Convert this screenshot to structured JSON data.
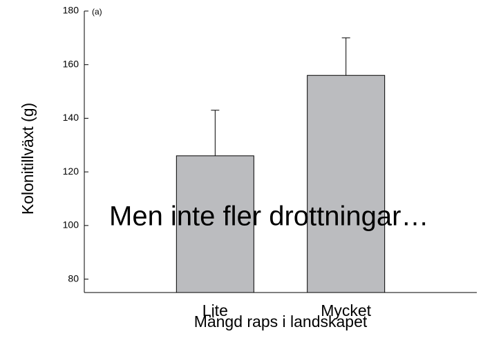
{
  "chart_data": {
    "type": "bar",
    "annotation": "(a)",
    "overlay_text": "Men inte fler drottningar…",
    "x_label": "Mängd raps i landskapet",
    "y_label": "Kolonitillväxt (g)",
    "categories": [
      "Lite",
      "Mycket"
    ],
    "values": [
      126,
      156
    ],
    "errors": [
      17,
      14
    ],
    "color": "#bbbcbf",
    "ylim": [
      75,
      180
    ],
    "yticks": [
      80,
      100,
      120,
      140,
      160,
      180
    ],
    "grid": false
  }
}
